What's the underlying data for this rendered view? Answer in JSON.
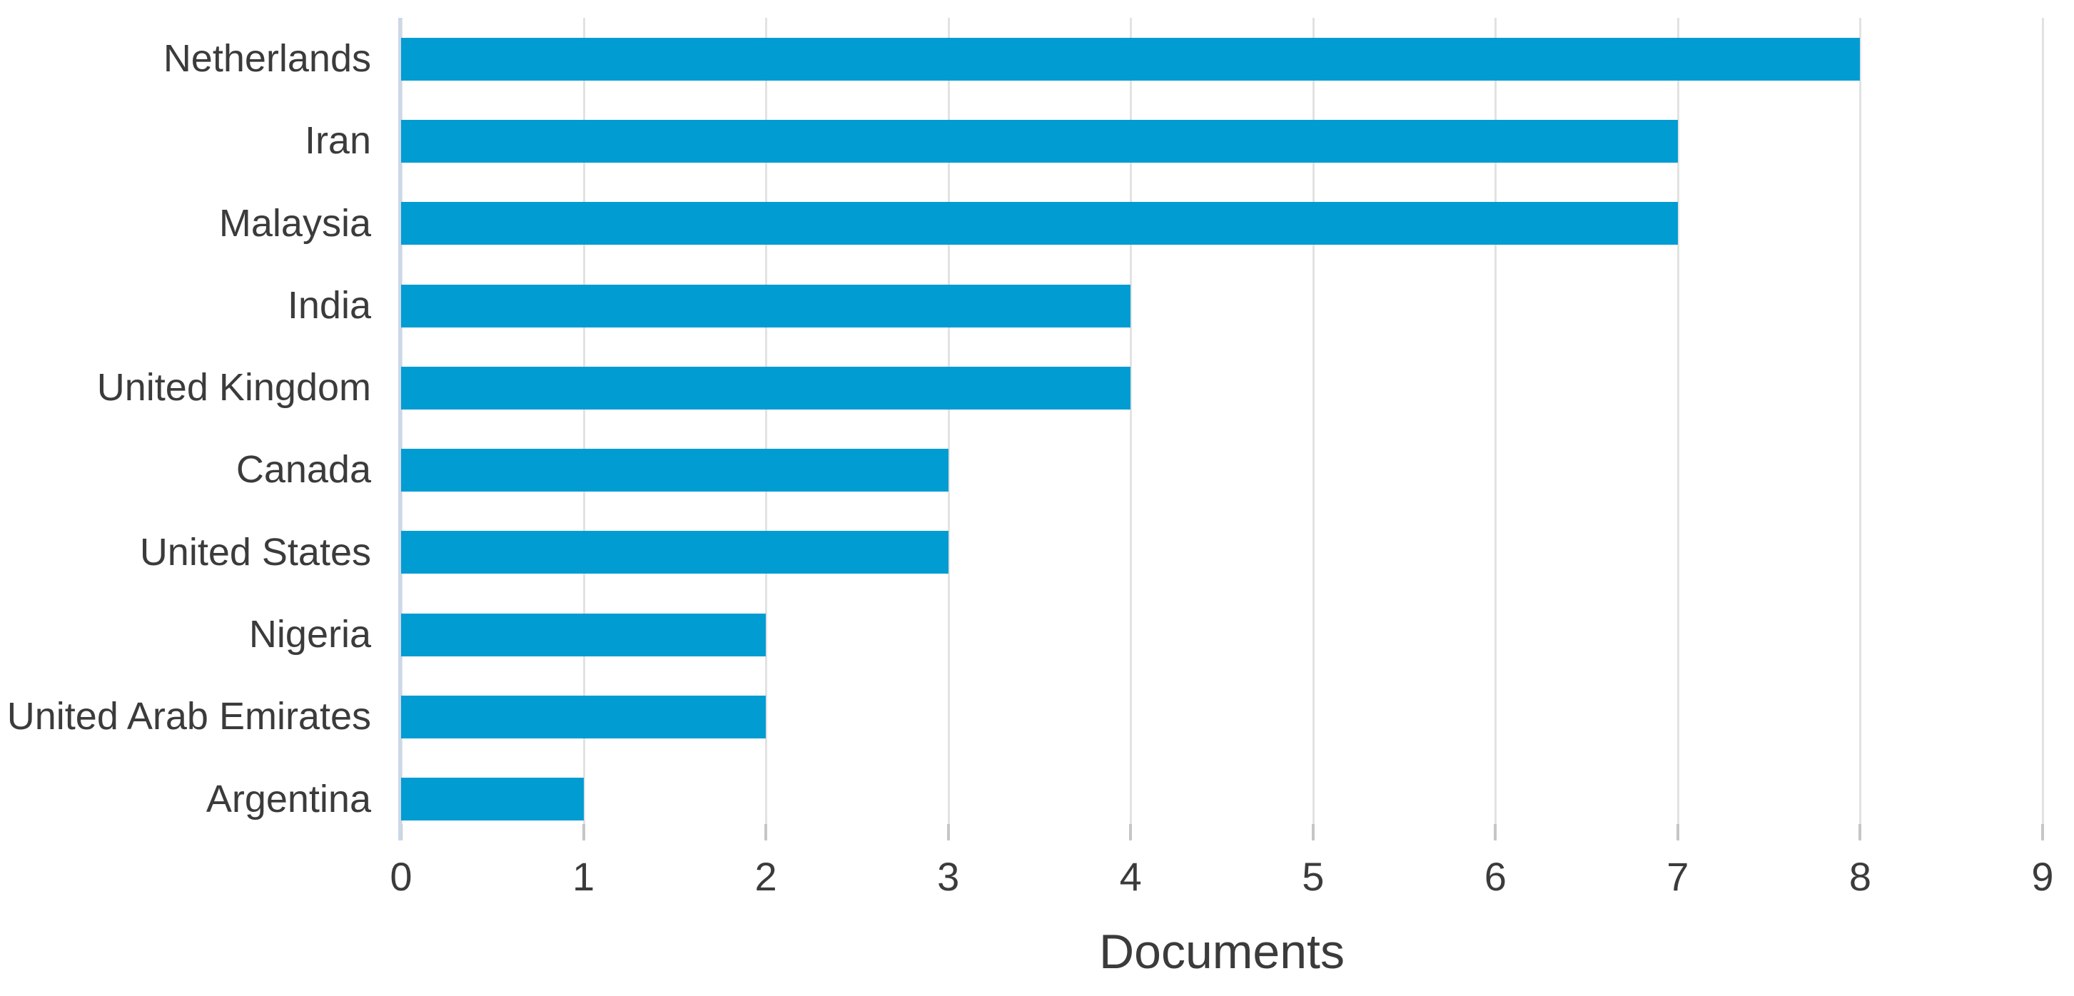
{
  "chart_data": {
    "type": "bar",
    "orientation": "horizontal",
    "title": "",
    "xlabel": "Documents",
    "ylabel": "",
    "categories": [
      "Netherlands",
      "Iran",
      "Malaysia",
      "India",
      "United Kingdom",
      "Canada",
      "United States",
      "Nigeria",
      "United Arab Emirates",
      "Argentina"
    ],
    "values": [
      8,
      7,
      7,
      4,
      4,
      3,
      3,
      2,
      2,
      1
    ],
    "x_ticks": [
      "0",
      "1",
      "2",
      "3",
      "4",
      "5",
      "6",
      "7",
      "8",
      "9"
    ],
    "xlim": [
      0,
      9
    ],
    "grid": "vertical-gridlines-on",
    "legend": "none",
    "colors": {
      "bar": "#009cd2",
      "axis_line": "#ccd7ea",
      "gridline": "#e2e2e2",
      "tick": "#c6c6c6",
      "text": "#3b3b3b",
      "background": "#ffffff"
    }
  }
}
